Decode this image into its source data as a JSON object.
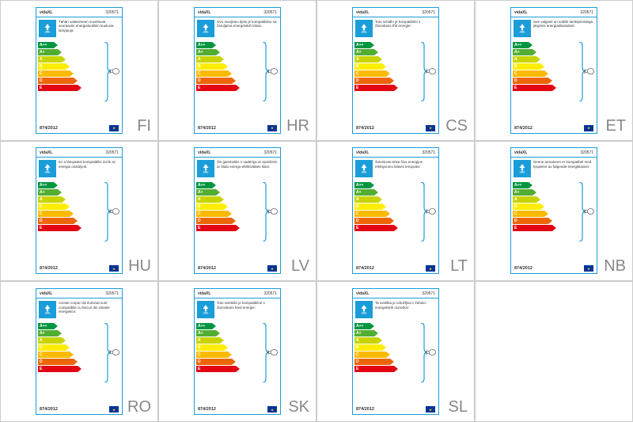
{
  "brand": "vidaXL",
  "sku": "320571",
  "regulation": "874/2012",
  "energy_classes": [
    {
      "label": "A++",
      "color": "#009640",
      "width": 20
    },
    {
      "label": "A+",
      "color": "#52ae32",
      "width": 25
    },
    {
      "label": "A",
      "color": "#c8d400",
      "width": 30
    },
    {
      "label": "B",
      "color": "#ffed00",
      "width": 35
    },
    {
      "label": "C",
      "color": "#fbba00",
      "width": 40
    },
    {
      "label": "D",
      "color": "#ec6608",
      "width": 45
    },
    {
      "label": "E",
      "color": "#e30613",
      "width": 50
    }
  ],
  "colors": {
    "border": "#1a9dd9",
    "bracket": "#1a9dd9",
    "text": "#333333",
    "lang": "#888888"
  },
  "labels": [
    {
      "lang": "FI",
      "desc": "Tähän valaisimeen soveltuvat seuraaviin energialuokkiin kuuluvia lamppuja:"
    },
    {
      "lang": "HR",
      "desc": "Ovo rasvjetno tijelo je kompatibilno sa žaruljama energetskih klasa:"
    },
    {
      "lang": "CS",
      "desc": "Toto svítidlo je kompatibilní s žárovkami tříd energie:"
    },
    {
      "lang": "ET",
      "desc": "See valgusti on sobilik lambipirnidega järgmisi energiaklassidest:"
    },
    {
      "lang": "HU",
      "desc": "Ez a lámpatest kompatibilis izzók az energia osztályok:"
    },
    {
      "lang": "LV",
      "desc": "Šis gaismeklis ir saderīgs ar spuldzēm ar šādu energo-efektivitātes klasi:"
    },
    {
      "lang": "LT",
      "desc": "Šviestuvai tinka šios energijos efektyvumo klasės lemputės:"
    },
    {
      "lang": "NB",
      "desc": "Denne armaturen er kompatibel med lyspærer av følgende energiklasser:"
    },
    {
      "lang": "RO",
      "desc": "Aceste corpuri de iluminat sunt compatibile cu becuri din clasele energetice:"
    },
    {
      "lang": "SK",
      "desc": "Toto svietidlo je kompatibilné s žiarovkami tried energie:"
    },
    {
      "lang": "SL",
      "desc": "Ta svetilka je združljiva z žebulci energetskih razredov:"
    }
  ]
}
